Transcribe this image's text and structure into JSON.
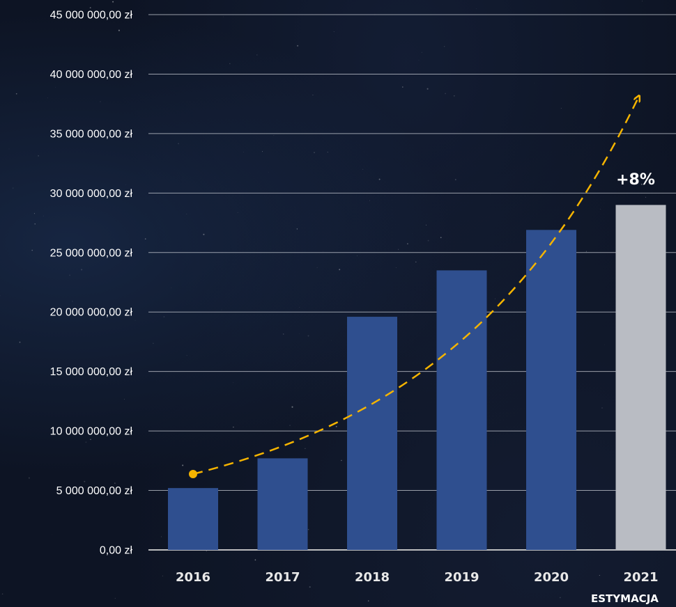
{
  "chart_data": {
    "type": "bar",
    "categories": [
      "2016",
      "2017",
      "2018",
      "2019",
      "2020",
      "2021"
    ],
    "values": [
      5200000,
      7700000,
      19600000,
      23500000,
      26900000,
      29000000
    ],
    "ylim": [
      0,
      45000000
    ],
    "y_ticks": [
      0,
      5000000,
      10000000,
      15000000,
      20000000,
      25000000,
      30000000,
      35000000,
      40000000,
      45000000
    ],
    "y_tick_labels": [
      "0,00 zł",
      "5 000 000,00 zł",
      "10 000 000,00 zł",
      "15 000 000,00 zł",
      "20 000 000,00 zł",
      "25 000 000,00 zł",
      "30 000 000,00 zł",
      "35 000 000,00 zł",
      "40 000 000,00 zł",
      "45 000 000,00 zł"
    ],
    "grid": true,
    "bar_colors": [
      "#2f4f8f",
      "#2f4f8f",
      "#2f4f8f",
      "#2f4f8f",
      "#2f4f8f",
      "#b9bcc3"
    ],
    "trend_color": "#f5b400",
    "annotations": {
      "growth": "+8%",
      "estimate": "ESTYMACJA"
    }
  }
}
